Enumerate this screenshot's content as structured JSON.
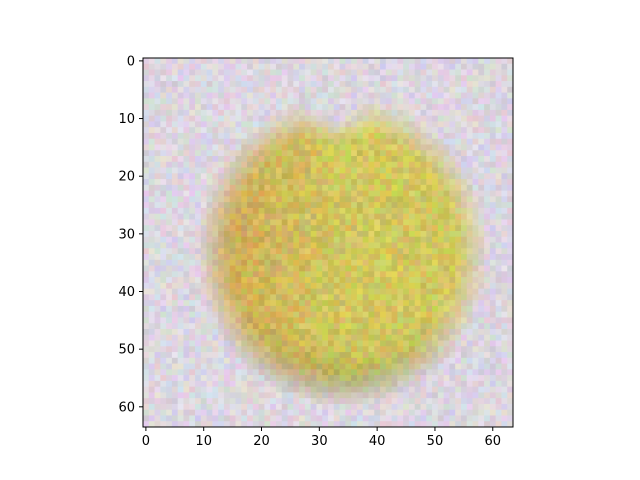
{
  "figure": {
    "background": "#ffffff",
    "axes_color": "#000000"
  },
  "image": {
    "description_palette": {
      "background_noise": "#ddd7e3",
      "apple_light": "#d2cc62",
      "apple_mid": "#c9b451",
      "apple_shadow": "#5c5c3f",
      "apple_red": "#c87a4a"
    },
    "resolution": [
      64,
      64
    ]
  },
  "axes": {
    "xlim": [
      -0.5,
      63.5
    ],
    "ylim": [
      63.5,
      -0.5
    ],
    "x_ticks": [
      0,
      10,
      20,
      30,
      40,
      50,
      60
    ],
    "x_tick_labels": [
      "0",
      "10",
      "20",
      "30",
      "40",
      "50",
      "60"
    ],
    "y_ticks": [
      0,
      10,
      20,
      30,
      40,
      50,
      60
    ],
    "y_tick_labels": [
      "0",
      "10",
      "20",
      "30",
      "40",
      "50",
      "60"
    ]
  }
}
